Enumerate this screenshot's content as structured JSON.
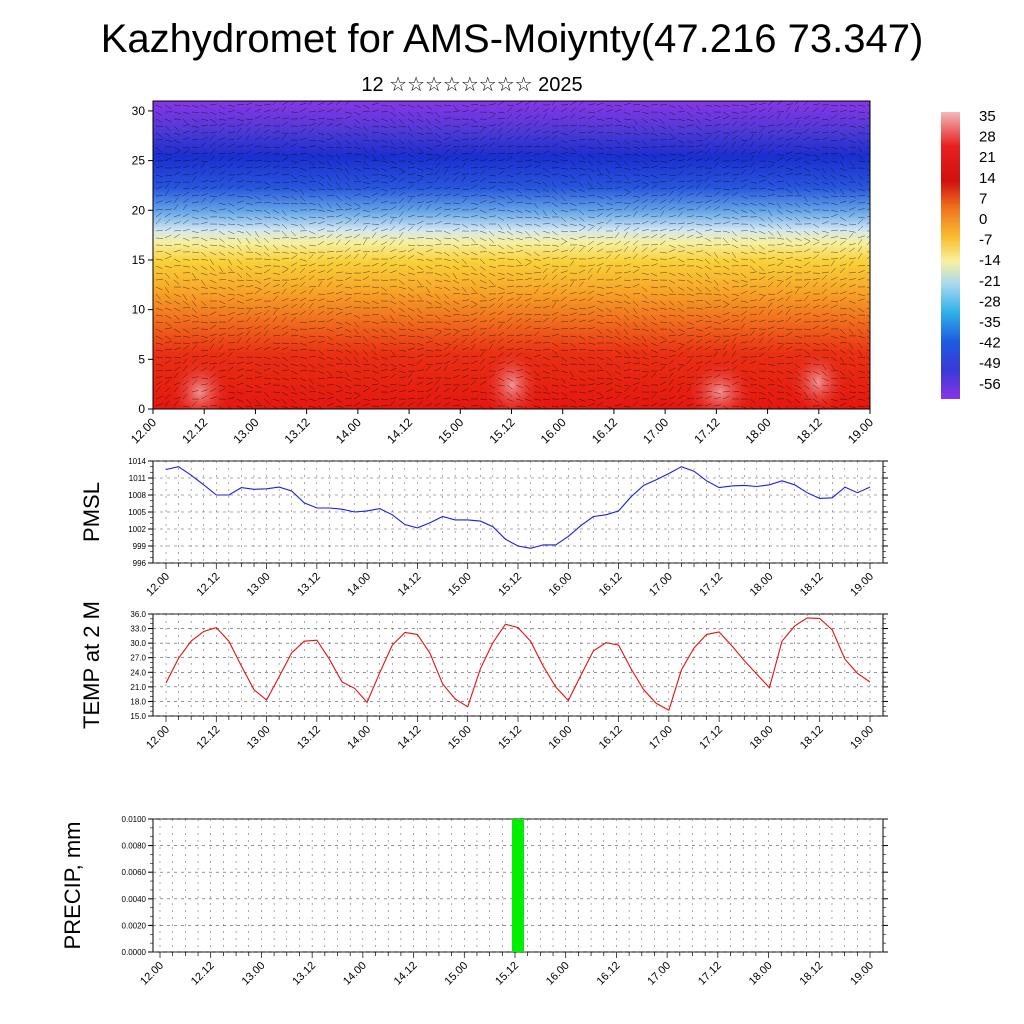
{
  "title": "Kazhydromet for AMS-Moiynty(47.216 73.347)",
  "subtitle": "12 ☆☆☆☆☆☆☆☆ 2025",
  "x_tick_labels": [
    "12.00",
    "12.12",
    "13.00",
    "13.12",
    "14.00",
    "14.12",
    "15.00",
    "15.12",
    "16.00",
    "16.12",
    "17.00",
    "17.12",
    "18.00",
    "18.12",
    "19.00"
  ],
  "colors": {
    "pmsl_line": "#1f1fdc",
    "temp_line": "#e81010",
    "precip_bar": "#00ee00",
    "grid": "#555555"
  },
  "chart_data": [
    {
      "type": "heatmap",
      "title": "",
      "x_ticks": [
        "12.00",
        "12.12",
        "13.00",
        "13.12",
        "14.00",
        "14.12",
        "15.00",
        "15.12",
        "16.00",
        "16.12",
        "17.00",
        "17.12",
        "18.00",
        "18.12",
        "19.00"
      ],
      "y_ticks": [
        0,
        5,
        10,
        15,
        20,
        25,
        30
      ],
      "ylim": [
        0,
        31
      ],
      "colorbar_labels": [
        "35",
        "28",
        "21",
        "14",
        "7",
        "0",
        "-7",
        "-14",
        "-21",
        "-28",
        "-35",
        "-42",
        "-49",
        "-56"
      ],
      "colorbar_values": [
        35,
        28,
        21,
        14,
        7,
        0,
        -7,
        -14,
        -21,
        -28,
        -35,
        -42,
        -49,
        -56
      ],
      "overlay": "wind vectors"
    },
    {
      "type": "line",
      "ylabel": "PMSL",
      "ylim": [
        996,
        1014
      ],
      "y_ticks": [
        "1014",
        "1011",
        "1008",
        "1005",
        "1002",
        "999",
        "996"
      ],
      "x_ticks": [
        "12.00",
        "12.12",
        "13.00",
        "13.12",
        "14.00",
        "14.12",
        "15.00",
        "15.12",
        "16.00",
        "16.12",
        "17.00",
        "17.12",
        "18.00",
        "18.12",
        "19.00"
      ],
      "x": [
        0,
        0.25,
        0.5,
        0.75,
        1,
        1.25,
        1.5,
        1.75,
        2,
        2.25,
        2.5,
        2.75,
        3,
        3.25,
        3.5,
        3.75,
        4,
        4.25,
        4.5,
        4.75,
        5,
        5.25,
        5.5,
        5.75,
        6,
        6.25,
        6.5,
        6.75,
        7,
        7.25,
        7.5,
        7.75,
        8,
        8.25,
        8.5,
        8.75,
        9,
        9.25,
        9.5,
        9.75,
        10,
        10.25,
        10.5,
        10.75,
        11,
        11.25,
        11.5,
        11.75,
        12,
        12.25,
        12.5,
        12.75,
        13,
        13.25,
        13.5,
        13.75,
        14
      ],
      "series": [
        {
          "values": [
            1012.5,
            1013.0,
            1011.5,
            1009.8,
            1008.0,
            1008.0,
            1009.3,
            1009.0,
            1009.1,
            1009.4,
            1008.7,
            1006.6,
            1005.7,
            1005.7,
            1005.5,
            1005.0,
            1005.2,
            1005.6,
            1004.5,
            1002.8,
            1002.2,
            1003.1,
            1004.2,
            1003.6,
            1003.6,
            1003.4,
            1002.4,
            1000.2,
            999.0,
            998.6,
            999.2,
            999.2,
            1000.7,
            1002.6,
            1004.2,
            1004.5,
            1005.2,
            1007.7,
            1009.7,
            1010.7,
            1011.8,
            1013.0,
            1012.2,
            1010.5,
            1009.3,
            1009.6,
            1009.7,
            1009.5,
            1009.8,
            1010.5,
            1009.8,
            1008.4,
            1007.4,
            1007.5,
            1009.4,
            1008.4,
            1009.4
          ]
        }
      ]
    },
    {
      "type": "line",
      "ylabel": "TEMP at 2 M",
      "ylim": [
        15,
        36
      ],
      "y_ticks": [
        "36.0",
        "33.0",
        "30.0",
        "27.0",
        "24.0",
        "21.0",
        "18.0",
        "15.0"
      ],
      "x_ticks": [
        "12.00",
        "12.12",
        "13.00",
        "13.12",
        "14.00",
        "14.12",
        "15.00",
        "15.12",
        "16.00",
        "16.12",
        "17.00",
        "17.12",
        "18.00",
        "18.12",
        "19.00"
      ],
      "x": [
        0,
        0.25,
        0.5,
        0.75,
        1,
        1.25,
        1.5,
        1.75,
        2,
        2.25,
        2.5,
        2.75,
        3,
        3.25,
        3.5,
        3.75,
        4,
        4.25,
        4.5,
        4.75,
        5,
        5.25,
        5.5,
        5.75,
        6,
        6.25,
        6.5,
        6.75,
        7,
        7.25,
        7.5,
        7.75,
        8,
        8.25,
        8.5,
        8.75,
        9,
        9.25,
        9.5,
        9.75,
        10,
        10.25,
        10.5,
        10.75,
        11,
        11.25,
        11.5,
        11.75,
        12,
        12.25,
        12.5,
        12.75,
        13,
        13.25,
        13.5,
        13.75,
        14
      ],
      "series": [
        {
          "values": [
            21.8,
            26.9,
            30.4,
            32.4,
            33.2,
            30.4,
            25.3,
            20.4,
            18.3,
            23.1,
            28.0,
            30.4,
            30.6,
            26.7,
            22.0,
            20.7,
            17.8,
            23.9,
            29.6,
            32.2,
            31.8,
            27.9,
            21.6,
            18.5,
            16.9,
            24.7,
            30.1,
            33.9,
            33.2,
            30.4,
            25.3,
            21.0,
            18.2,
            23.4,
            28.4,
            30.1,
            29.6,
            24.7,
            20.4,
            17.6,
            16.2,
            24.5,
            29.0,
            31.8,
            32.3,
            29.5,
            26.4,
            23.6,
            20.8,
            30.4,
            33.5,
            35.2,
            35.1,
            32.7,
            26.7,
            23.8,
            22.0
          ]
        }
      ]
    },
    {
      "type": "bar",
      "ylabel": "PRECIP, mm",
      "ylim": [
        0,
        0.01
      ],
      "y_ticks": [
        "0.0100",
        "0.0080",
        "0.0060",
        "0.0040",
        "0.0020",
        "0.0000"
      ],
      "x_ticks": [
        "12.00",
        "12.12",
        "13.00",
        "13.12",
        "14.00",
        "14.12",
        "15.00",
        "15.12",
        "16.00",
        "16.12",
        "17.00",
        "17.12",
        "18.00",
        "18.12",
        "19.00"
      ],
      "bars": [
        {
          "x": 7.06,
          "value": 0.01
        }
      ]
    }
  ]
}
